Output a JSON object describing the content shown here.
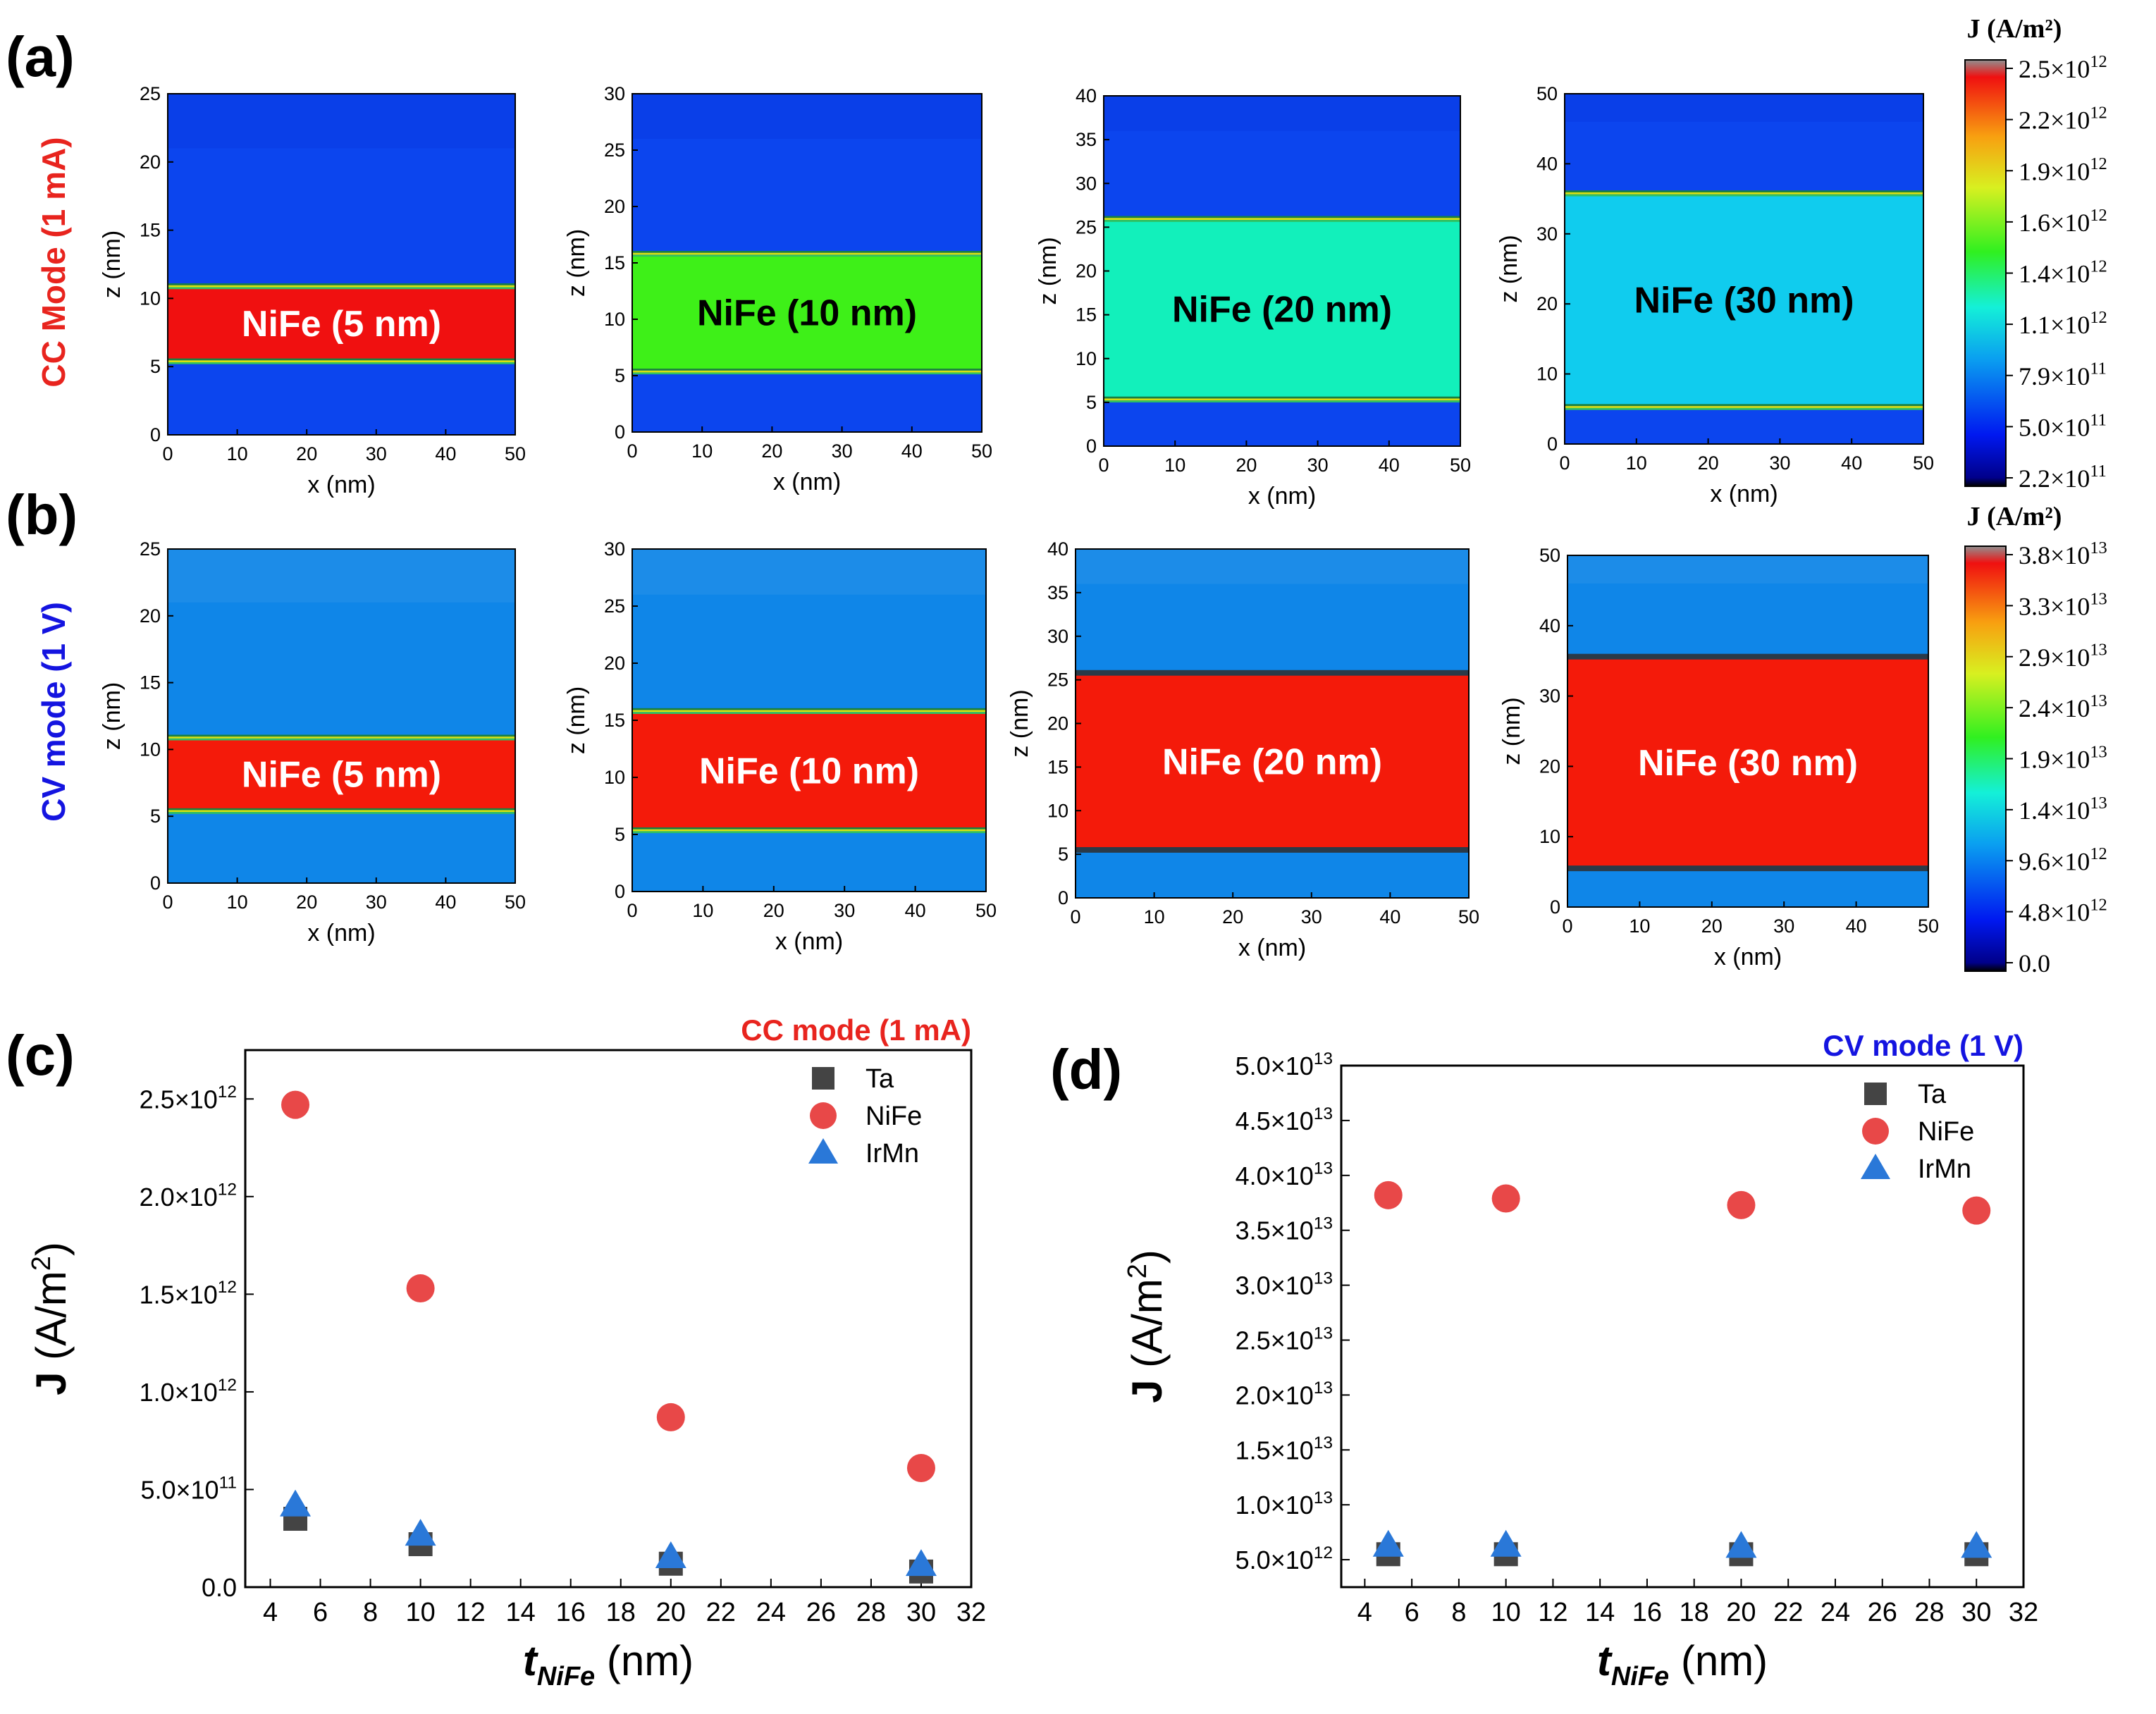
{
  "panel_labels": [
    "(a)",
    "(b)",
    "(c)",
    "(d)"
  ],
  "row_labels": {
    "a": {
      "text": "CC Mode (1 mA)",
      "color": "#e8241e"
    },
    "b": {
      "text": "CV mode (1 V)",
      "color": "#1414e0"
    }
  },
  "axis_labels": {
    "x": "x (nm)",
    "z": "z (nm)"
  },
  "colors": {
    "ta_irmn_cc": "#0c45ee",
    "ta_irmn_cv": "#0f86e8",
    "nife_cc": [
      "#f01010",
      "#3ef018",
      "#12f0bb",
      "#10ccee"
    ],
    "nife_cv": "#f41a0a",
    "stripe": [
      "#1a8040",
      "#d8e010",
      "#30c060"
    ],
    "grey_border": "#2a3a48",
    "marker_ta": "#444444",
    "marker_nife": "#e84848",
    "marker_irmn": "#2a78d8"
  },
  "colormap_cc": {
    "title": "J (A/m²)",
    "ticks": [
      {
        "m": "2.5",
        "e": "12"
      },
      {
        "m": "2.2",
        "e": "12"
      },
      {
        "m": "1.9",
        "e": "12"
      },
      {
        "m": "1.6",
        "e": "12"
      },
      {
        "m": "1.4",
        "e": "12"
      },
      {
        "m": "1.1",
        "e": "12"
      },
      {
        "m": "7.9",
        "e": "11"
      },
      {
        "m": "5.0",
        "e": "11"
      },
      {
        "m": "2.2",
        "e": "11"
      }
    ]
  },
  "colormap_cv": {
    "title": "J (A/m²)",
    "ticks": [
      {
        "m": "3.8",
        "e": "13"
      },
      {
        "m": "3.3",
        "e": "13"
      },
      {
        "m": "2.9",
        "e": "13"
      },
      {
        "m": "2.4",
        "e": "13"
      },
      {
        "m": "1.9",
        "e": "13"
      },
      {
        "m": "1.4",
        "e": "13"
      },
      {
        "m": "9.6",
        "e": "12"
      },
      {
        "m": "4.8",
        "e": "12"
      },
      {
        "m": "0.0",
        "e": ""
      }
    ]
  },
  "cross_sections": [
    {
      "label": "NiFe (5 nm)",
      "zmax": 25,
      "nife": [
        5.5,
        10.8
      ],
      "cap": 21,
      "cv_top": 21,
      "zticks": [
        0,
        5,
        10,
        15,
        20,
        25
      ],
      "xticks": [
        0,
        10,
        20,
        30,
        40,
        50
      ]
    },
    {
      "label": "NiFe (10 nm)",
      "zmax": 30,
      "nife": [
        5.5,
        15.7
      ],
      "cap": 26,
      "cv_top": 26,
      "zticks": [
        0,
        5,
        10,
        15,
        20,
        25,
        30
      ],
      "xticks": [
        0,
        10,
        20,
        30,
        40,
        50
      ]
    },
    {
      "label": "NiFe (20 nm)",
      "zmax": 40,
      "nife": [
        5.5,
        25.8
      ],
      "cap": 36,
      "cv_top": 36,
      "zticks": [
        0,
        5,
        10,
        15,
        20,
        25,
        30,
        35,
        40
      ],
      "xticks": [
        0,
        10,
        20,
        30,
        40,
        50
      ]
    },
    {
      "label": "NiFe (30 nm)",
      "zmax": 50,
      "nife": [
        5.5,
        35.6
      ],
      "cap": 46,
      "cv_top": 46,
      "zticks": [
        0,
        10,
        20,
        30,
        40,
        50
      ],
      "xticks": [
        0,
        10,
        20,
        30,
        40,
        50
      ]
    }
  ],
  "chart_data": [
    {
      "type": "scatter",
      "title": "CC mode (1 mA)",
      "xlabel": "t_NiFe (nm)",
      "ylabel": "J (A/m2)",
      "xlim": [
        3,
        32
      ],
      "ylim": [
        0,
        2750000000000.0
      ],
      "xticks": [
        4,
        6,
        8,
        10,
        12,
        14,
        16,
        18,
        20,
        22,
        24,
        26,
        28,
        30,
        32
      ],
      "yticks": [
        {
          "v": 0,
          "m": "0.0",
          "e": ""
        },
        {
          "v": 500000000000.0,
          "m": "5.0",
          "e": "11"
        },
        {
          "v": 1000000000000.0,
          "m": "1.0",
          "e": "12"
        },
        {
          "v": 1500000000000.0,
          "m": "1.5",
          "e": "12"
        },
        {
          "v": 2000000000000.0,
          "m": "2.0",
          "e": "12"
        },
        {
          "v": 2500000000000.0,
          "m": "2.5",
          "e": "12"
        }
      ],
      "x": [
        5,
        10,
        20,
        30
      ],
      "series": [
        {
          "name": "Ta",
          "marker": "square",
          "values": [
            350000000000.0,
            220000000000.0,
            120000000000.0,
            80000000000.0
          ]
        },
        {
          "name": "NiFe",
          "marker": "circle",
          "values": [
            2470000000000.0,
            1530000000000.0,
            870000000000.0,
            610000000000.0
          ]
        },
        {
          "name": "IrMn",
          "marker": "triangle",
          "values": [
            420000000000.0,
            270000000000.0,
            155000000000.0,
            115000000000.0
          ]
        }
      ],
      "legend": "top-right"
    },
    {
      "type": "scatter",
      "title": "CV mode (1 V)",
      "xlabel": "t_NiFe (nm)",
      "ylabel": "J (A/m2)",
      "xlim": [
        3,
        32
      ],
      "ylim": [
        2500000000000.0,
        50000000000000.0
      ],
      "xticks": [
        4,
        6,
        8,
        10,
        12,
        14,
        16,
        18,
        20,
        22,
        24,
        26,
        28,
        30,
        32
      ],
      "yticks": [
        {
          "v": 5000000000000.0,
          "m": "5.0",
          "e": "12"
        },
        {
          "v": 10000000000000.0,
          "m": "1.0",
          "e": "13"
        },
        {
          "v": 15000000000000.0,
          "m": "1.5",
          "e": "13"
        },
        {
          "v": 20000000000000.0,
          "m": "2.0",
          "e": "13"
        },
        {
          "v": 25000000000000.0,
          "m": "2.5",
          "e": "13"
        },
        {
          "v": 30000000000000.0,
          "m": "3.0",
          "e": "13"
        },
        {
          "v": 35000000000000.0,
          "m": "3.5",
          "e": "13"
        },
        {
          "v": 40000000000000.0,
          "m": "4.0",
          "e": "13"
        },
        {
          "v": 45000000000000.0,
          "m": "4.5",
          "e": "13"
        },
        {
          "v": 50000000000000.0,
          "m": "5.0",
          "e": "13"
        }
      ],
      "x": [
        5,
        10,
        20,
        30
      ],
      "series": [
        {
          "name": "Ta",
          "marker": "square",
          "values": [
            5500000000000.0,
            5500000000000.0,
            5500000000000.0,
            5500000000000.0
          ]
        },
        {
          "name": "NiFe",
          "marker": "circle",
          "values": [
            38200000000000.0,
            37900000000000.0,
            37300000000000.0,
            36800000000000.0
          ]
        },
        {
          "name": "IrMn",
          "marker": "triangle",
          "values": [
            6300000000000.0,
            6300000000000.0,
            6200000000000.0,
            6200000000000.0
          ]
        }
      ],
      "legend": "top-right"
    }
  ]
}
